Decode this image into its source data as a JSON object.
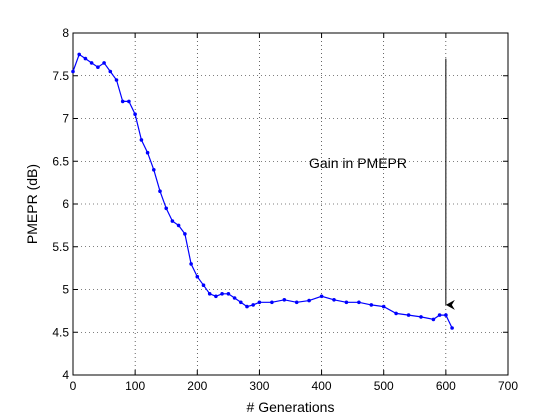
{
  "chart_data": {
    "type": "line",
    "title": "",
    "xlabel": "# Generations",
    "ylabel": "PMEPR (dB)",
    "xlim": [
      0,
      700
    ],
    "ylim": [
      4,
      8
    ],
    "xticks": [
      0,
      100,
      200,
      300,
      400,
      500,
      600,
      700
    ],
    "yticks": [
      4,
      4.5,
      5,
      5.5,
      6,
      6.5,
      7,
      7.5,
      8
    ],
    "xtick_labels": [
      "0",
      "100",
      "200",
      "300",
      "400",
      "500",
      "600",
      "700"
    ],
    "ytick_labels": [
      "4",
      "4.5",
      "5",
      "5.5",
      "6",
      "6.5",
      "7",
      "7.5",
      "8"
    ],
    "grid": true,
    "series_color": "#0000ff",
    "marker": "dot",
    "series": [
      {
        "x": [
          0,
          10,
          20,
          30,
          40,
          50,
          60,
          70,
          80,
          90,
          100,
          110,
          120,
          130,
          140,
          150,
          160,
          170,
          180,
          190,
          200,
          210,
          220,
          230,
          240,
          250,
          260,
          270,
          280,
          290,
          300,
          320,
          340,
          360,
          380,
          400,
          420,
          440,
          460,
          480,
          500,
          520,
          540,
          560,
          580,
          590,
          600,
          610
        ],
        "y": [
          7.55,
          7.75,
          7.7,
          7.65,
          7.6,
          7.65,
          7.55,
          7.45,
          7.2,
          7.2,
          7.05,
          6.75,
          6.6,
          6.4,
          6.15,
          5.95,
          5.8,
          5.75,
          5.65,
          5.3,
          5.15,
          5.05,
          4.95,
          4.92,
          4.95,
          4.95,
          4.9,
          4.85,
          4.8,
          4.82,
          4.85,
          4.85,
          4.88,
          4.85,
          4.87,
          4.92,
          4.88,
          4.85,
          4.85,
          4.82,
          4.8,
          4.72,
          4.7,
          4.68,
          4.65,
          4.7,
          4.7,
          4.55
        ]
      }
    ],
    "annotations": [
      {
        "text": "Gain in PMEPR",
        "x": 600,
        "y_start": 7.7,
        "y_end": 4.82
      }
    ]
  }
}
